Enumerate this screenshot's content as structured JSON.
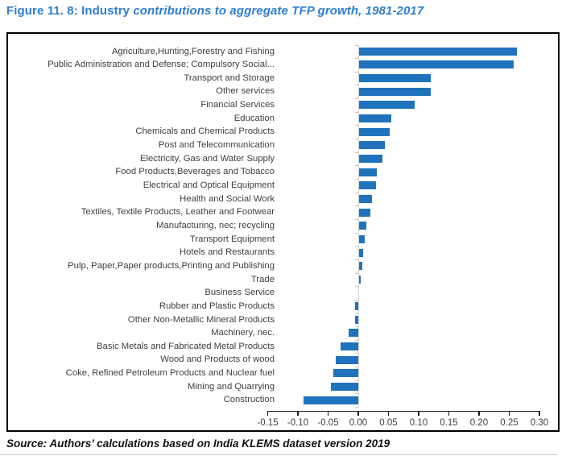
{
  "title": {
    "prefix": "Figure 11. 8: Industry ",
    "italic": "contributions to aggregate TFP growth, 1981-2017"
  },
  "source": "Source: Authors’ calculations based on India KLEMS dataset version 2019",
  "colors": {
    "bar": "#1f72bc",
    "title": "#2e7ecf",
    "axis": "#1a1a1a",
    "label_text": "#404040"
  },
  "chart_data": {
    "type": "bar",
    "orientation": "horizontal",
    "title": "Industry contributions to aggregate TFP growth, 1981-2017",
    "xlabel": "",
    "ylabel": "",
    "xlim": [
      -0.15,
      0.3
    ],
    "x_ticks": [
      "-0.15",
      "-0.10",
      "-0.05",
      "0.00",
      "0.05",
      "0.10",
      "0.15",
      "0.20",
      "0.25",
      "0.30"
    ],
    "grid": false,
    "legend": null,
    "categories": [
      "Agriculture,Hunting,Forestry and Fishing",
      "Public Administration and Defense; Compulsory Social...",
      "Transport and Storage",
      "Other services",
      "Financial Services",
      "Education",
      "Chemicals and  Chemical Products",
      "Post and Telecommunication",
      "Electricity, Gas and Water Supply",
      "Food Products,Beverages and Tobacco",
      "Electrical and Optical Equipment",
      "Health and Social Work",
      "Textiles, Textile Products, Leather and Footwear",
      "Manufacturing, nec; recycling",
      "Transport Equipment",
      "Hotels and Restaurants",
      "Pulp, Paper,Paper products,Printing and Publishing",
      "Trade",
      "Business Service",
      "Rubber and Plastic Products",
      "Other Non-Metallic Mineral Products",
      "Machinery, nec.",
      "Basic Metals and Fabricated Metal Products",
      "Wood and Products of wood",
      "Coke, Refined Petroleum Products and Nuclear fuel",
      "Mining and Quarrying",
      "Construction"
    ],
    "values": [
      0.261,
      0.256,
      0.119,
      0.118,
      0.092,
      0.053,
      0.051,
      0.042,
      0.038,
      0.029,
      0.028,
      0.021,
      0.018,
      0.012,
      0.009,
      0.007,
      0.005,
      0.002,
      0.0,
      -0.005,
      -0.005,
      -0.016,
      -0.03,
      -0.037,
      -0.042,
      -0.046,
      -0.091
    ]
  }
}
